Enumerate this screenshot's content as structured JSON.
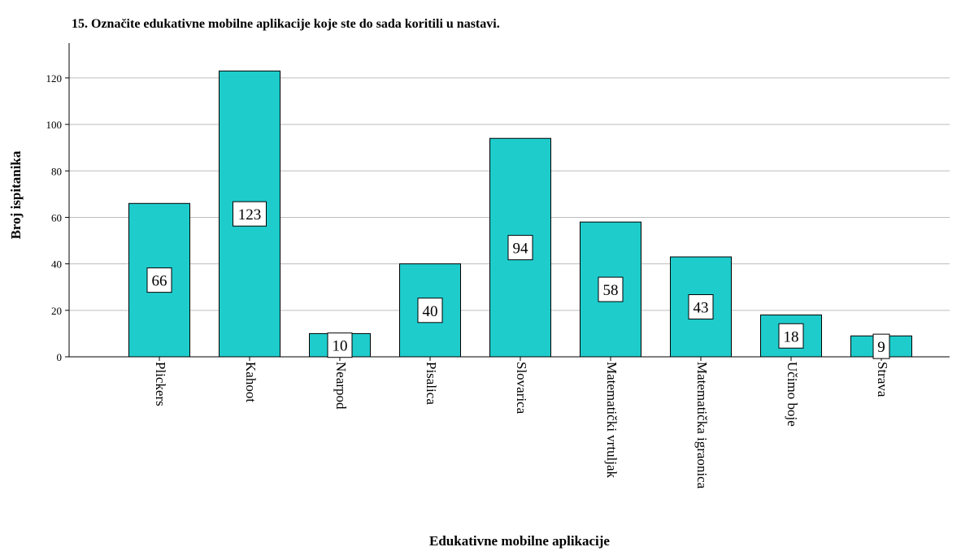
{
  "chart_data": {
    "type": "bar",
    "title": "15. Označite edukativne mobilne aplikacije koje ste do sada koritili u nastavi.",
    "xlabel": "Edukativne mobilne aplikacije",
    "ylabel": "Broj ispitanika",
    "categories": [
      "Plickers",
      "Kahoot",
      "Nearpod",
      "Pisalica",
      "Slovarica",
      "Matematički vrtuljak",
      "Matematička igraonica",
      "Učimo boje",
      "Strava"
    ],
    "values": [
      66,
      123,
      10,
      40,
      94,
      58,
      43,
      18,
      9
    ],
    "data_labels": [
      "66",
      "123",
      "10",
      "40",
      "94",
      "58",
      "43",
      "18",
      "9"
    ],
    "yticks": [
      0,
      20,
      40,
      60,
      80,
      100,
      120
    ],
    "ylim": [
      0,
      135
    ],
    "grid": true,
    "bar_color": "#1fcccc"
  }
}
